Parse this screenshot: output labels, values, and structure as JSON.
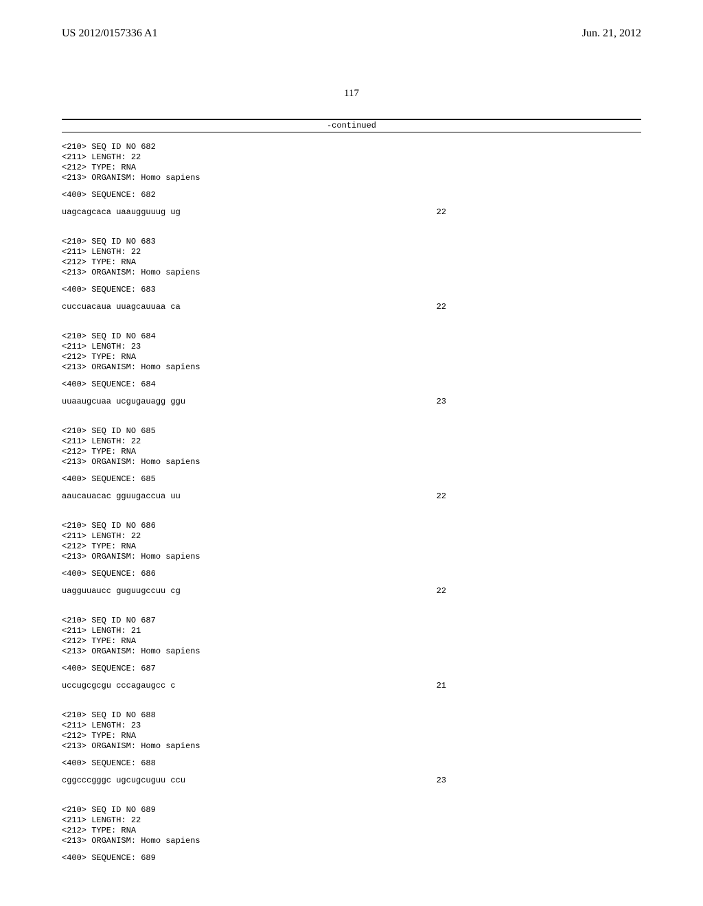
{
  "header": {
    "pub_number": "US 2012/0157336 A1",
    "pub_date": "Jun. 21, 2012"
  },
  "page_number": "117",
  "continued_label": "-continued",
  "sequences": [
    {
      "feature_lines": [
        "<210> SEQ ID NO 682",
        "<211> LENGTH: 22",
        "<212> TYPE: RNA",
        "<213> ORGANISM: Homo sapiens"
      ],
      "seq_label": "<400> SEQUENCE: 682",
      "seq_text": "uagcagcaca uaaugguuug ug",
      "seq_len": "22"
    },
    {
      "feature_lines": [
        "<210> SEQ ID NO 683",
        "<211> LENGTH: 22",
        "<212> TYPE: RNA",
        "<213> ORGANISM: Homo sapiens"
      ],
      "seq_label": "<400> SEQUENCE: 683",
      "seq_text": "cuccuacaua uuagcauuaa ca",
      "seq_len": "22"
    },
    {
      "feature_lines": [
        "<210> SEQ ID NO 684",
        "<211> LENGTH: 23",
        "<212> TYPE: RNA",
        "<213> ORGANISM: Homo sapiens"
      ],
      "seq_label": "<400> SEQUENCE: 684",
      "seq_text": "uuaaugcuaa ucgugauagg ggu",
      "seq_len": "23"
    },
    {
      "feature_lines": [
        "<210> SEQ ID NO 685",
        "<211> LENGTH: 22",
        "<212> TYPE: RNA",
        "<213> ORGANISM: Homo sapiens"
      ],
      "seq_label": "<400> SEQUENCE: 685",
      "seq_text": "aaucauacac gguugaccua uu",
      "seq_len": "22"
    },
    {
      "feature_lines": [
        "<210> SEQ ID NO 686",
        "<211> LENGTH: 22",
        "<212> TYPE: RNA",
        "<213> ORGANISM: Homo sapiens"
      ],
      "seq_label": "<400> SEQUENCE: 686",
      "seq_text": "uagguuaucc guguugccuu cg",
      "seq_len": "22"
    },
    {
      "feature_lines": [
        "<210> SEQ ID NO 687",
        "<211> LENGTH: 21",
        "<212> TYPE: RNA",
        "<213> ORGANISM: Homo sapiens"
      ],
      "seq_label": "<400> SEQUENCE: 687",
      "seq_text": "uccugcgcgu cccagaugcc c",
      "seq_len": "21"
    },
    {
      "feature_lines": [
        "<210> SEQ ID NO 688",
        "<211> LENGTH: 23",
        "<212> TYPE: RNA",
        "<213> ORGANISM: Homo sapiens"
      ],
      "seq_label": "<400> SEQUENCE: 688",
      "seq_text": "cggcccgggc ugcugcuguu ccu",
      "seq_len": "23"
    },
    {
      "feature_lines": [
        "<210> SEQ ID NO 689",
        "<211> LENGTH: 22",
        "<212> TYPE: RNA",
        "<213> ORGANISM: Homo sapiens"
      ],
      "seq_label": "<400> SEQUENCE: 689",
      "seq_text": "",
      "seq_len": ""
    }
  ]
}
